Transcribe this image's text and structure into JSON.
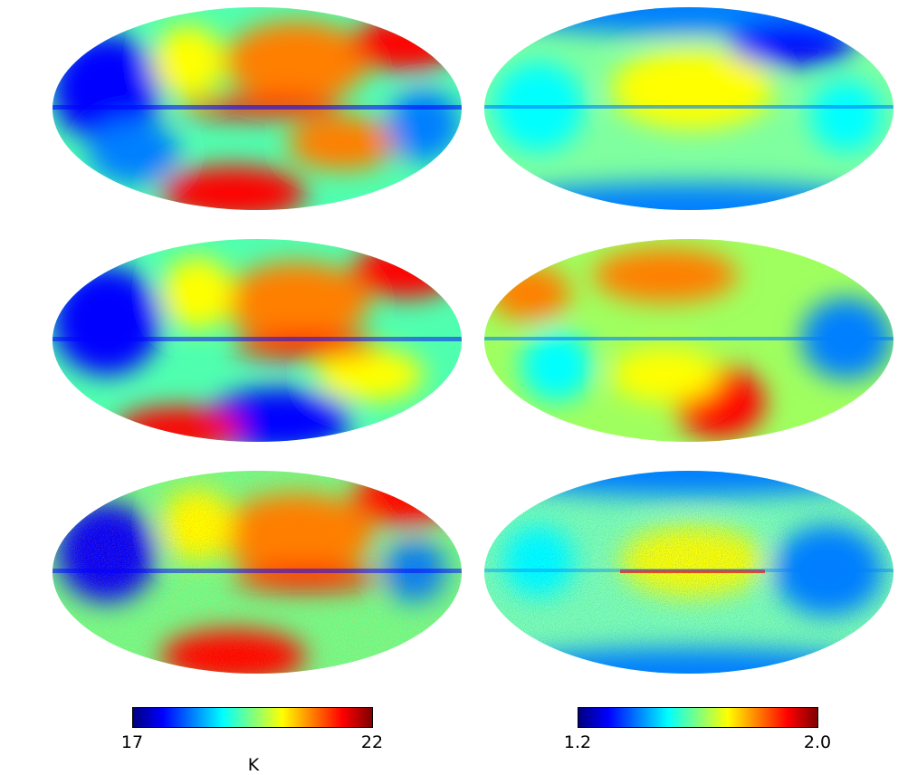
{
  "colormap": [
    "#00007f",
    "#0000ff",
    "#007fff",
    "#00ffff",
    "#7fff7f",
    "#ffff00",
    "#ff7f00",
    "#ff0000",
    "#7f0000"
  ],
  "maps": [
    {
      "id": "left-top",
      "projection": "mollweide",
      "colorbar": "left"
    },
    {
      "id": "right-top",
      "projection": "mollweide",
      "colorbar": "right"
    },
    {
      "id": "left-middle",
      "projection": "mollweide",
      "colorbar": "left"
    },
    {
      "id": "right-middle",
      "projection": "mollweide",
      "colorbar": "right"
    },
    {
      "id": "left-bottom",
      "projection": "mollweide",
      "colorbar": "left"
    },
    {
      "id": "right-bottom",
      "projection": "mollweide",
      "colorbar": "right"
    }
  ],
  "colorbars": {
    "left": {
      "min_label": "17",
      "max_label": "22",
      "unit": "K",
      "min": 17,
      "max": 22
    },
    "right": {
      "min_label": "1.2",
      "max_label": "2.0",
      "unit": "",
      "min": 1.2,
      "max": 2.0
    }
  }
}
